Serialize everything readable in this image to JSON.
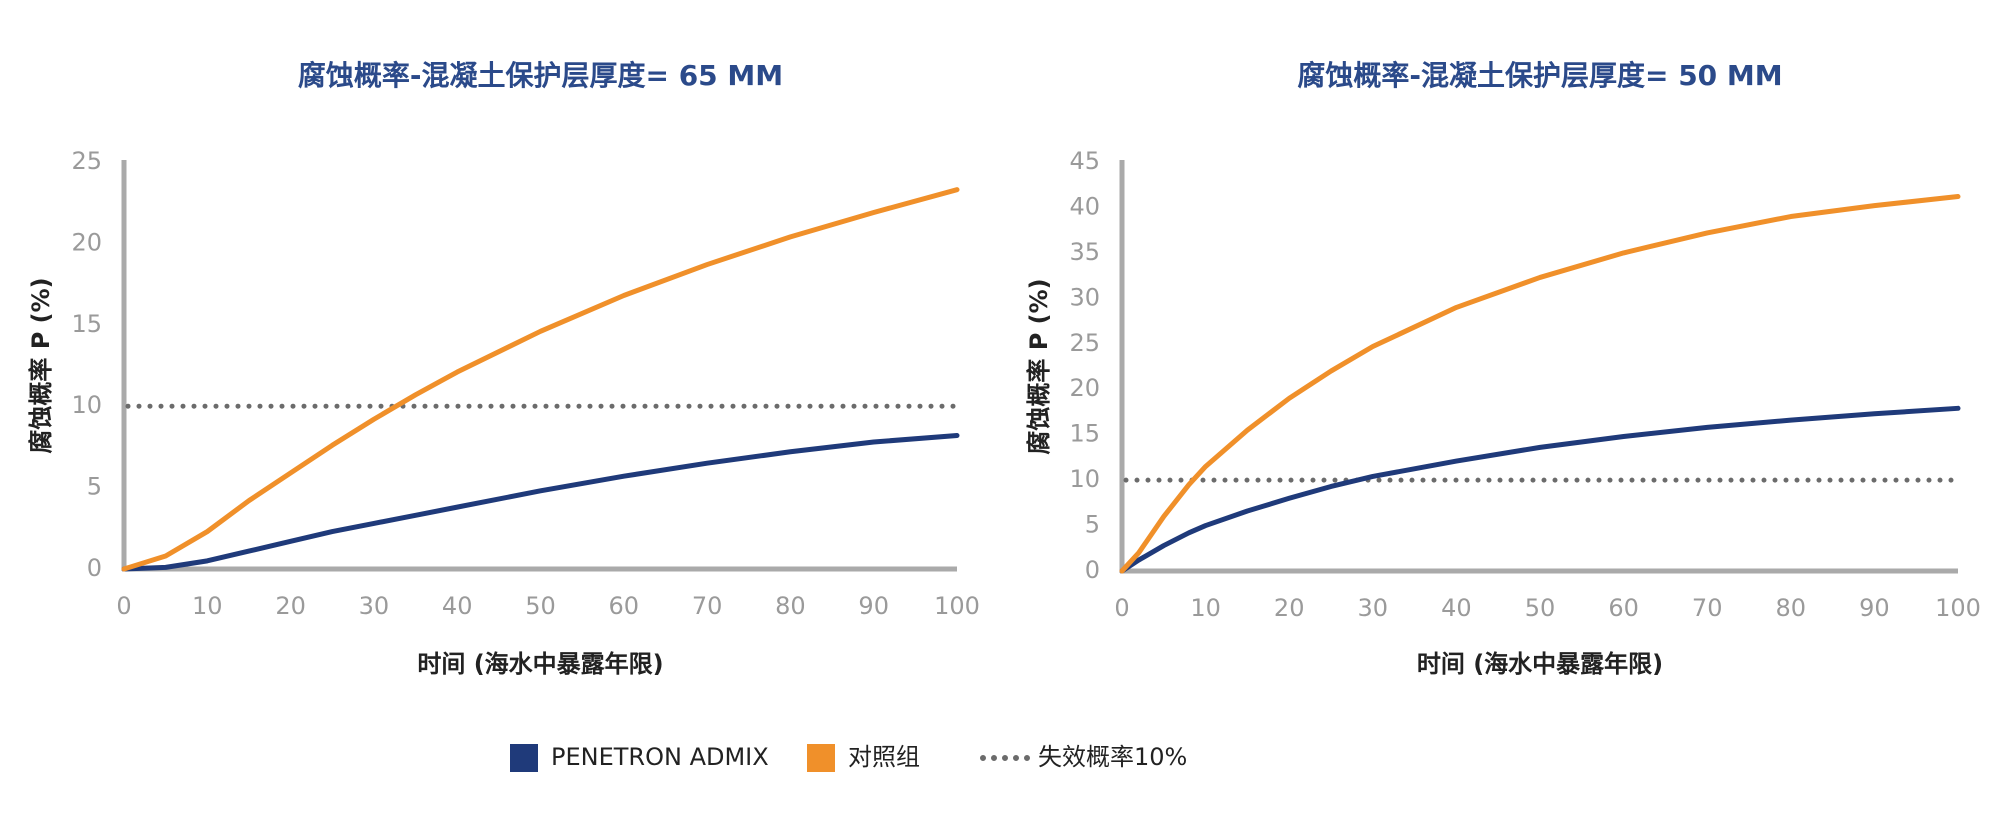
{
  "chart_data": [
    {
      "type": "line",
      "title": "腐蚀概率-混凝土保护层厚度= 65 MM",
      "x_label": "时间 (海水中暴露年限)",
      "y_label": "腐蚀概率 P (%)",
      "x": [
        0,
        5,
        10,
        15,
        20,
        25,
        30,
        35,
        40,
        50,
        60,
        70,
        80,
        90,
        100
      ],
      "series": [
        {
          "color": "#1f3a7a",
          "values": [
            0,
            0.1,
            0.5,
            1.1,
            1.7,
            2.3,
            2.8,
            3.3,
            3.8,
            4.8,
            5.7,
            6.5,
            7.2,
            7.8,
            8.2
          ]
        },
        {
          "color": "#f0902a",
          "values": [
            0,
            0.8,
            2.3,
            4.2,
            5.9,
            7.6,
            9.2,
            10.7,
            12.1,
            14.6,
            16.8,
            18.7,
            20.4,
            21.9,
            23.3
          ]
        }
      ],
      "reference_line": {
        "value": 10,
        "color": "#6b6b6b"
      },
      "xlim": [
        0,
        100
      ],
      "xticks": [
        0,
        10,
        20,
        30,
        40,
        50,
        60,
        70,
        80,
        90,
        100
      ],
      "ylim": [
        0,
        25
      ],
      "yticks": [
        0,
        5,
        10,
        15,
        20,
        25
      ]
    },
    {
      "type": "line",
      "title": "腐蚀概率-混凝土保护层厚度= 50 MM",
      "x_label": "时间 (海水中暴露年限)",
      "y_label": "腐蚀概率 P (%)",
      "x": [
        0,
        2,
        5,
        8,
        10,
        15,
        20,
        25,
        30,
        40,
        50,
        60,
        70,
        80,
        90,
        100
      ],
      "series": [
        {
          "color": "#1f3a7a",
          "values": [
            0,
            1.2,
            2.8,
            4.2,
            5,
            6.6,
            8,
            9.3,
            10.4,
            12.1,
            13.6,
            14.8,
            15.8,
            16.6,
            17.3,
            17.9
          ]
        },
        {
          "color": "#f0902a",
          "values": [
            0,
            2,
            6,
            9.5,
            11.5,
            15.5,
            19,
            22,
            24.7,
            29,
            32.3,
            35,
            37.2,
            39,
            40.2,
            41.2
          ]
        }
      ],
      "reference_line": {
        "value": 10,
        "color": "#6b6b6b"
      },
      "xlim": [
        0,
        100
      ],
      "xticks": [
        0,
        10,
        20,
        30,
        40,
        50,
        60,
        70,
        80,
        90,
        100
      ],
      "ylim": [
        0,
        45
      ],
      "yticks": [
        0,
        5,
        10,
        15,
        20,
        25,
        30,
        35,
        40,
        45
      ]
    }
  ],
  "legend": [
    {
      "name": "PENETRON ADMIX",
      "color": "#1f3a7a",
      "style": "square"
    },
    {
      "name": "对照组",
      "color": "#f0902a",
      "style": "square"
    },
    {
      "name": "失效概率10%",
      "color": "#6b6b6b",
      "style": "dotted"
    }
  ]
}
